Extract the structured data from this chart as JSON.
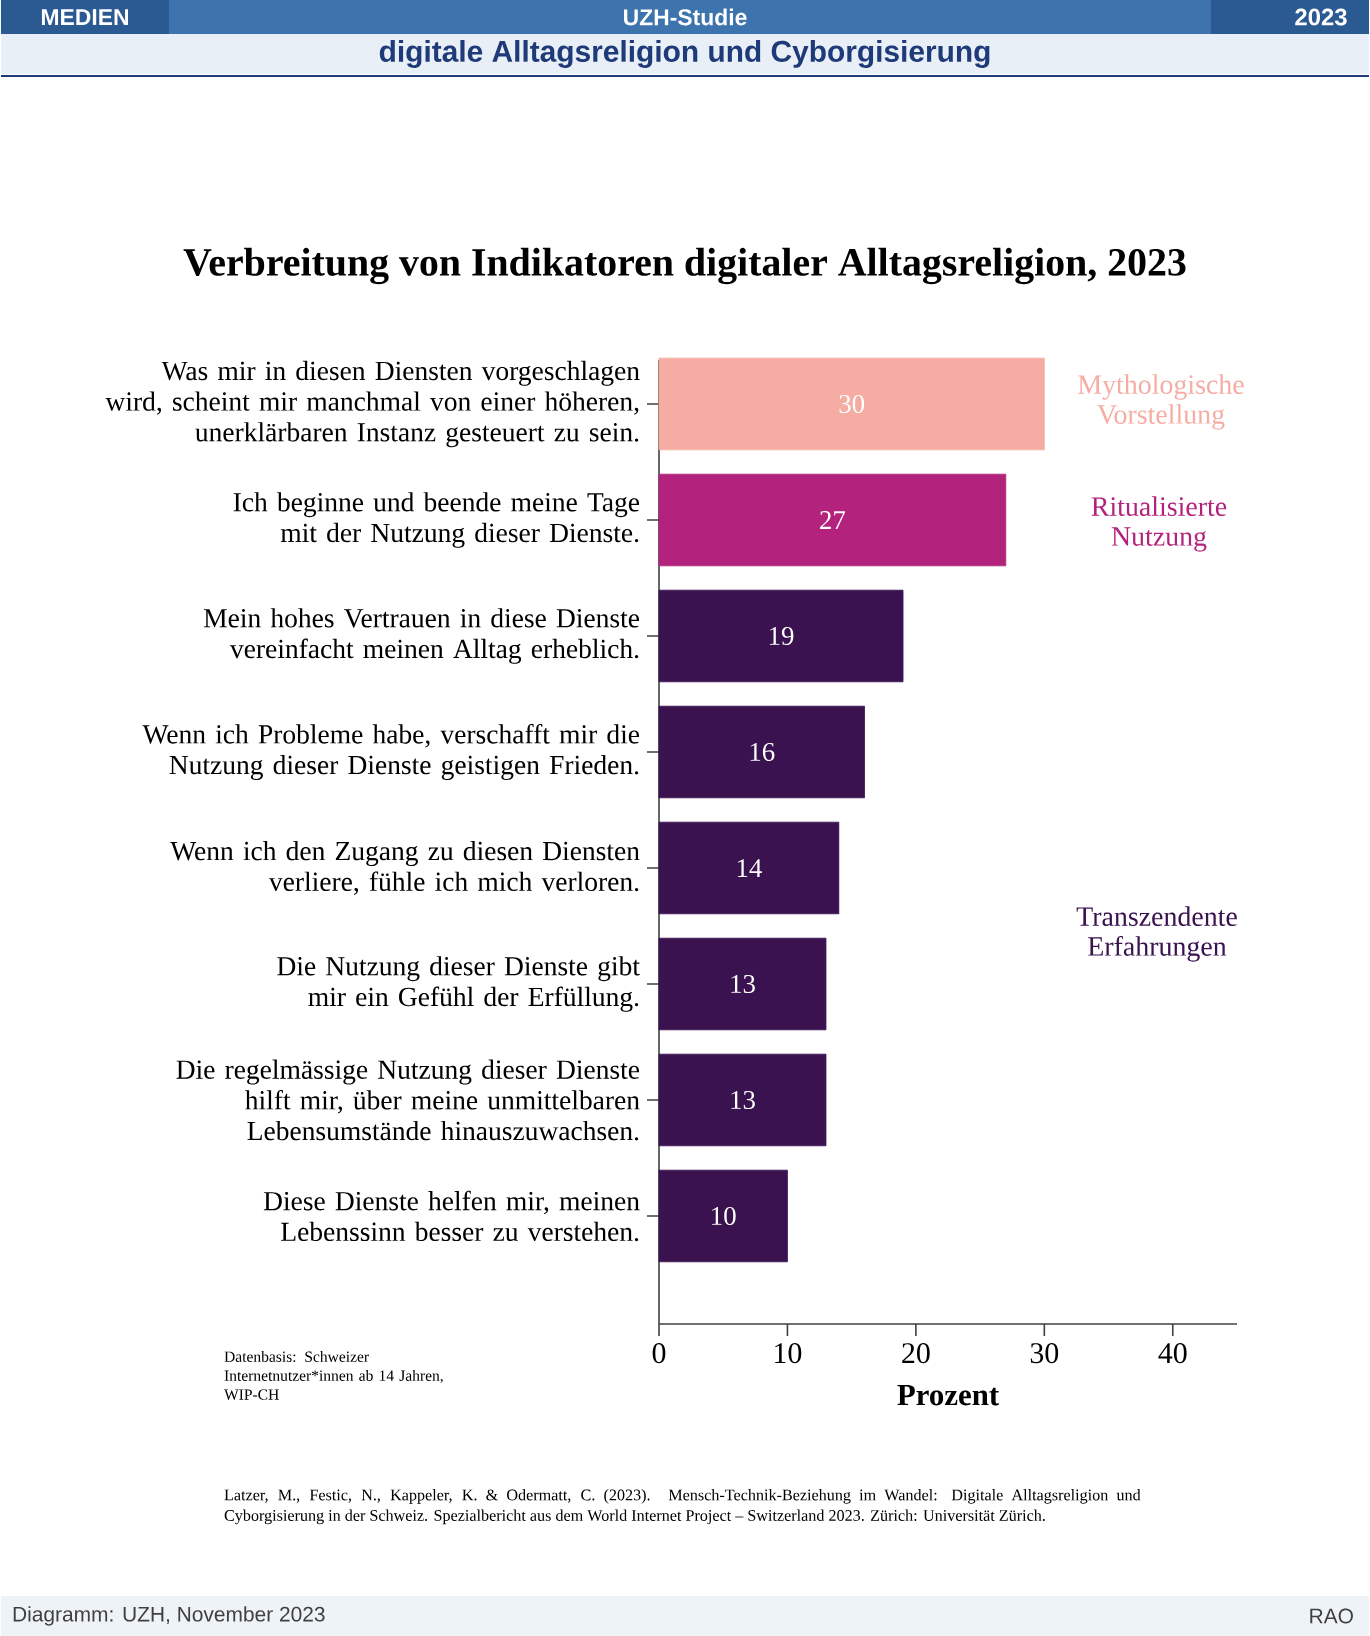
{
  "chart_data": {
    "type": "bar",
    "orientation": "horizontal",
    "title": "Verbreitung von Indikatoren digitaler Alltagsreligion, 2023",
    "subtitle": "digitale Alltagsreligion und Cyborgisierung",
    "categories": [
      "Was mir in diesen Diensten vorgeschlagen wird, scheint mir manchmal von einer höheren, unerklärbaren Instanz gesteuert zu sein.",
      "Ich beginne und beende meine Tage mit der Nutzung dieser Dienste.",
      "Mein hohes Vertrauen in diese Dienste vereinfacht meinen Alltag erheblich.",
      "Wenn ich Probleme habe, verschafft mir die Nutzung dieser Dienste geistigen Frieden.",
      "Wenn ich den Zugang zu diesen Diensten verliere, fühle ich mich verloren.",
      "Die Nutzung dieser Dienste gibt mir ein Gefühl der Erfüllung.",
      "Die regelmässige Nutzung dieser Dienste hilft mir, über meine unmittelbaren Lebensumstände hinauszuwachsen.",
      "Diese Dienste helfen mir, meinen Lebenssinn besser zu verstehen."
    ],
    "values": [
      30,
      27,
      19,
      16,
      14,
      13,
      13,
      10
    ],
    "colors": [
      "#f5aca2",
      "#b3237d",
      "#3b1250",
      "#3b1250",
      "#3b1250",
      "#3b1250",
      "#3b1250",
      "#3b1250"
    ],
    "data_labels": true,
    "xlim": [
      0,
      45
    ],
    "xticks": [
      0,
      10,
      20,
      30,
      40
    ],
    "xlabel": "Prozent",
    "annotations": [
      "MEDIEN",
      "UZH-Studie",
      "2023",
      "Mythologische Vorstellung",
      "Ritualisierte Nutzung",
      "Transzendente Erfahrungen",
      "Datenbasis: Schweizer Internetnutzer*innen ab 14 Jahren, WIP-CH",
      "Latzer, M., Festic, N., Kappeler, K. & Odermatt, C. (2023). Mensch-Technik-Beziehung im Wandel: Digitale Alltagsreligion und Cyborgisierung in der Schweiz. Spezialbericht aus dem World Internet Project – Switzerland 2023. Zürich: Universität Zürich.",
      "Diagramm: UZH, November 2023",
      "RAO"
    ]
  }
}
